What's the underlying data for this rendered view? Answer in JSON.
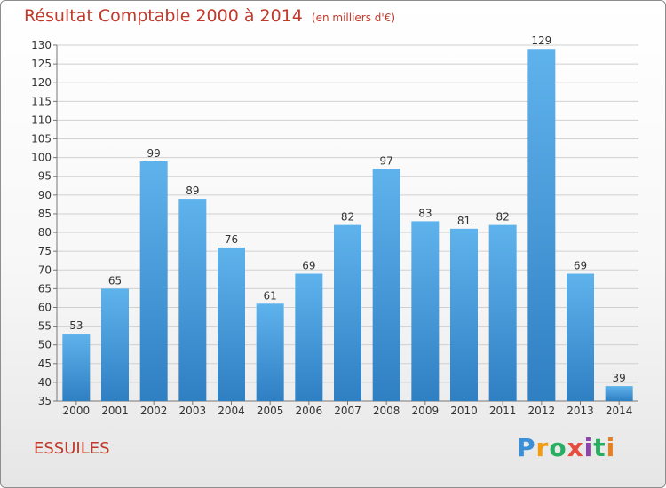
{
  "title": "Résultat Comptable 2000 à 2014",
  "subtitle": "(en milliers d'€)",
  "commune": "ESSUILES",
  "logo": {
    "letters": [
      "P",
      "r",
      "o",
      "x",
      "i",
      "t",
      "i"
    ],
    "colors": [
      "#3a8fd6",
      "#f39c12",
      "#27ae60",
      "#e74c3c",
      "#8e44ad",
      "#27ae60",
      "#e67e22"
    ]
  },
  "colors": {
    "bar_top": "#5fb3ec",
    "bar_bottom": "#2f7fc3",
    "title": "#c0392b",
    "grid": "#d0d0d0"
  },
  "chart_data": {
    "type": "bar",
    "categories": [
      "2000",
      "2001",
      "2002",
      "2003",
      "2004",
      "2005",
      "2006",
      "2007",
      "2008",
      "2009",
      "2010",
      "2011",
      "2012",
      "2013",
      "2014"
    ],
    "values": [
      53,
      65,
      99,
      89,
      76,
      61,
      69,
      82,
      97,
      83,
      81,
      82,
      129,
      69,
      39
    ],
    "ylim": [
      35,
      130
    ],
    "ytick_step": 5,
    "grid": true
  }
}
